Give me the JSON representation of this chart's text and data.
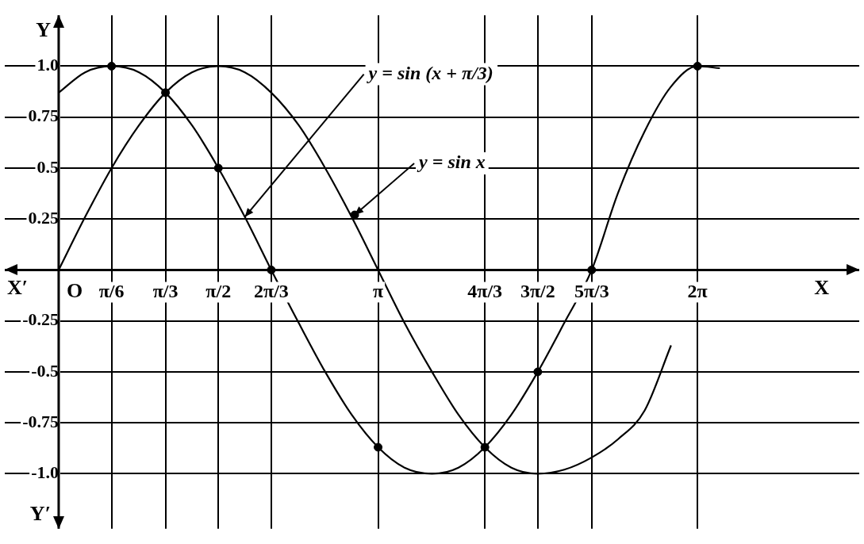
{
  "chart_data": {
    "type": "line",
    "xlabel": "X",
    "ylabel": "Y",
    "annotations": [
      "X′",
      "Y′",
      "O",
      {
        "text": "y = sin (x + π/3)",
        "x": 1.83,
        "y": 0.26
      },
      {
        "text": "y = sin x",
        "x": 2.91,
        "y": 0.27
      }
    ],
    "xlim": [
      -0.53,
      7.87
    ],
    "ylim": [
      -1.27,
      1.25
    ],
    "xticks": [
      {
        "value": 0.52,
        "label": "π/6"
      },
      {
        "value": 1.05,
        "label": "π/3"
      },
      {
        "value": 1.57,
        "label": "π/2"
      },
      {
        "value": 2.09,
        "label": "2π/3"
      },
      {
        "value": 3.14,
        "label": "π"
      },
      {
        "value": 4.19,
        "label": "4π/3"
      },
      {
        "value": 4.71,
        "label": "3π/2"
      },
      {
        "value": 5.24,
        "label": "5π/3"
      },
      {
        "value": 6.28,
        "label": "2π"
      }
    ],
    "yticks": [
      {
        "value": -1,
        "label": "-1.0"
      },
      -0.75,
      -0.5,
      -0.25,
      {
        "value": 0,
        "label": null
      },
      0.25,
      0.5,
      0.75,
      {
        "value": 1,
        "label": "1.0"
      }
    ],
    "grid": true,
    "legend": false,
    "marker": "none",
    "line_style": "solid",
    "series": [
      {
        "color": "#000000",
        "x": [
          0,
          0.26,
          0.52,
          0.79,
          1.05,
          1.31,
          1.57,
          1.83,
          2.09,
          2.36,
          2.62,
          2.88,
          3.14,
          3.4,
          3.67,
          3.93,
          4.19,
          4.45,
          4.71,
          4.97,
          5.24,
          5.5,
          5.76,
          6.02,
          6.28,
          6.5
        ],
        "values": [
          0.87,
          0.97,
          1,
          0.97,
          0.87,
          0.71,
          0.5,
          0.26,
          0,
          -0.26,
          -0.5,
          -0.71,
          -0.87,
          -0.97,
          -1,
          -0.97,
          -0.87,
          -0.71,
          -0.5,
          -0.26,
          0,
          0.38,
          0.68,
          0.9,
          1,
          0.99
        ]
      },
      {
        "color": "#000000",
        "x": [
          0,
          0.26,
          0.52,
          0.79,
          1.05,
          1.31,
          1.57,
          1.83,
          2.09,
          2.36,
          2.62,
          2.88,
          3.14,
          3.4,
          3.67,
          3.93,
          4.19,
          4.45,
          4.71,
          4.97,
          5.24,
          5.5,
          5.76,
          6.02
        ],
        "values": [
          0,
          0.26,
          0.5,
          0.71,
          0.87,
          0.97,
          1,
          0.97,
          0.87,
          0.71,
          0.5,
          0.26,
          0,
          -0.26,
          -0.5,
          -0.71,
          -0.87,
          -0.97,
          -1,
          -0.98,
          -0.92,
          -0.83,
          -0.69,
          -0.37
        ]
      },
      {
        "type": "scatter",
        "marker": "circle",
        "color": "#000000",
        "x": [
          0.52,
          1.05,
          1.57,
          2.09,
          3.14,
          4.19,
          4.71,
          5.24,
          6.28,
          2.91
        ],
        "values": [
          1,
          0.87,
          0.5,
          0,
          -0.87,
          -0.87,
          -0.5,
          0,
          1,
          0.27
        ]
      }
    ]
  }
}
